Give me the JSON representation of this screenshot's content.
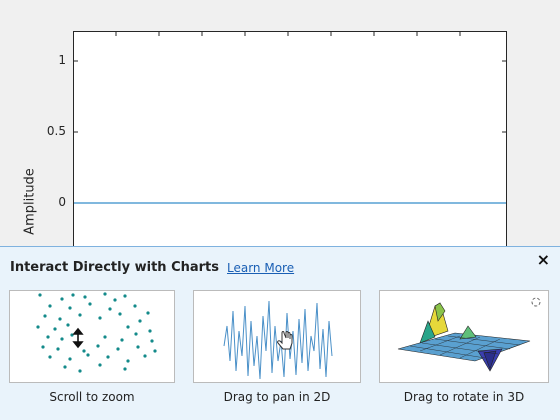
{
  "axes": {
    "ylabel": "Amplitude",
    "yticks": [
      "1",
      "0.5",
      "0"
    ]
  },
  "tips": {
    "title": "Interact Directly with Charts",
    "learn_more": "Learn More",
    "close_symbol": "×",
    "panels": [
      {
        "caption": "Scroll to zoom",
        "icon": "zoom-icon"
      },
      {
        "caption": "Drag to pan in 2D",
        "icon": "pan-hand-icon"
      },
      {
        "caption": "Drag to rotate in 3D",
        "icon": "rotate-icon"
      }
    ]
  },
  "colors": {
    "line": "#0072bd",
    "scatter": "#138a8a",
    "banner_bg": "#e9f3fb",
    "link": "#1a5fb4"
  }
}
